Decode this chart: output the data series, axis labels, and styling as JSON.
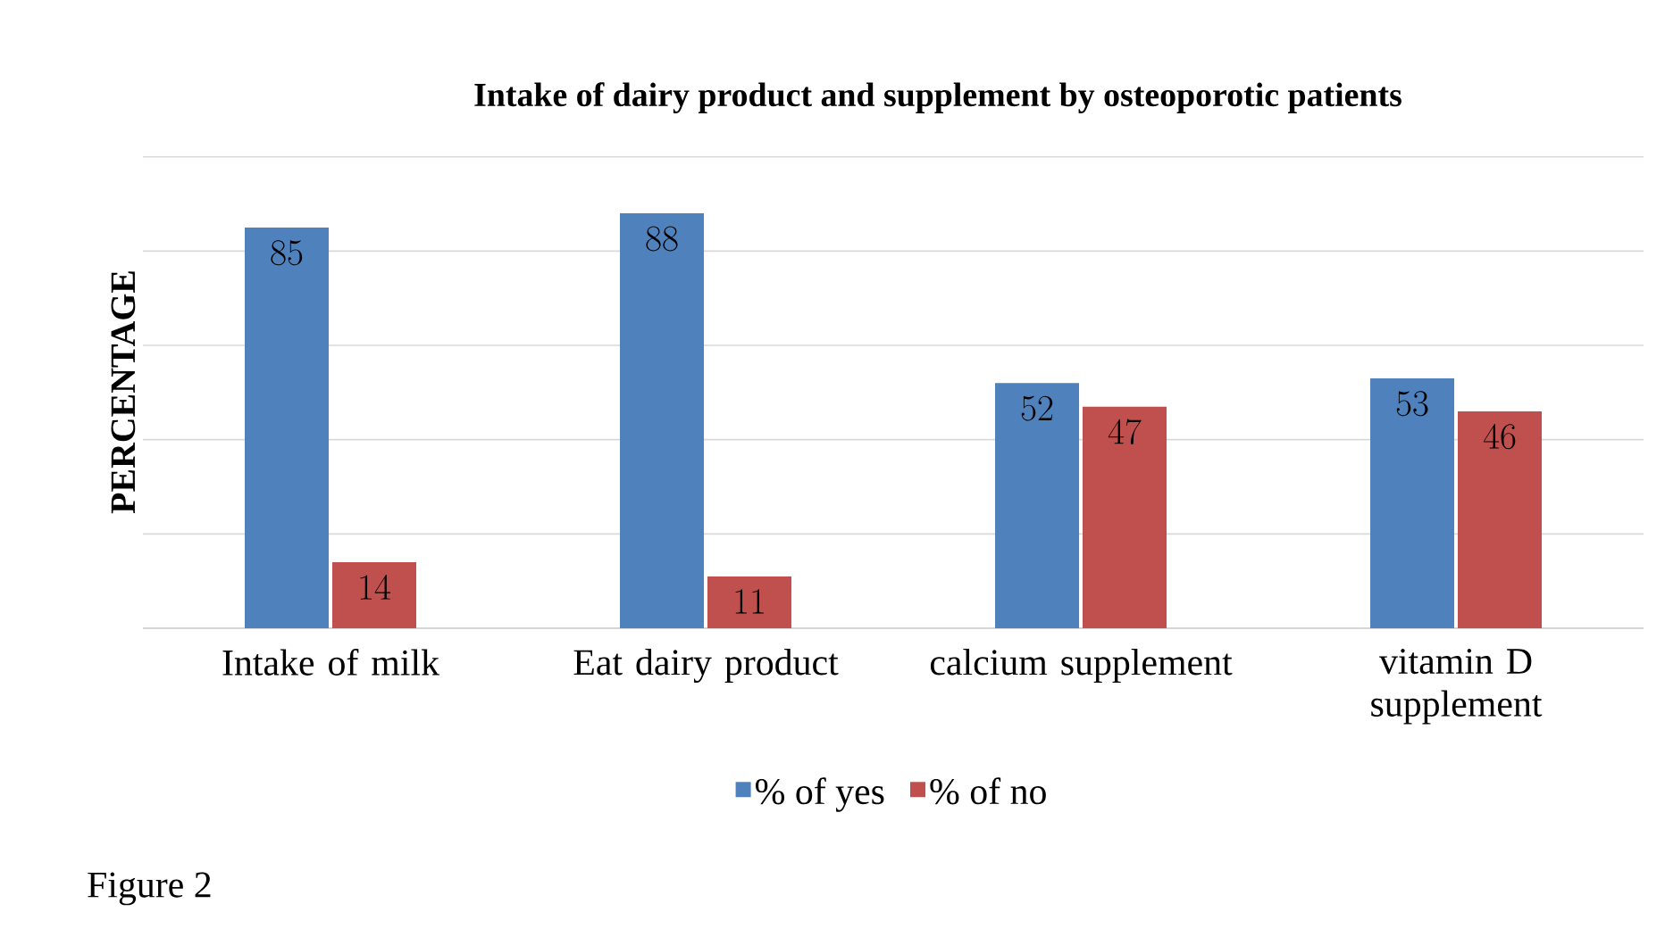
{
  "chart_data": {
    "type": "bar",
    "title": "Intake of dairy product and supplement by osteoporotic patients",
    "ylabel": "PERCENTAGE",
    "categories": [
      "Intake of milk",
      "Eat dairy product",
      "calcium supplement",
      "vitamin D supplement"
    ],
    "series": [
      {
        "name": "% of yes",
        "color": "#4f81bd",
        "values": [
          85,
          88,
          52,
          53
        ]
      },
      {
        "name": "% of no",
        "color": "#c0504d",
        "values": [
          14,
          11,
          47,
          46
        ]
      }
    ],
    "tick_labels": "x",
    "grid": "y",
    "legend": "bottom",
    "data_labels": true,
    "annotations": [
      "Figure  2"
    ]
  }
}
